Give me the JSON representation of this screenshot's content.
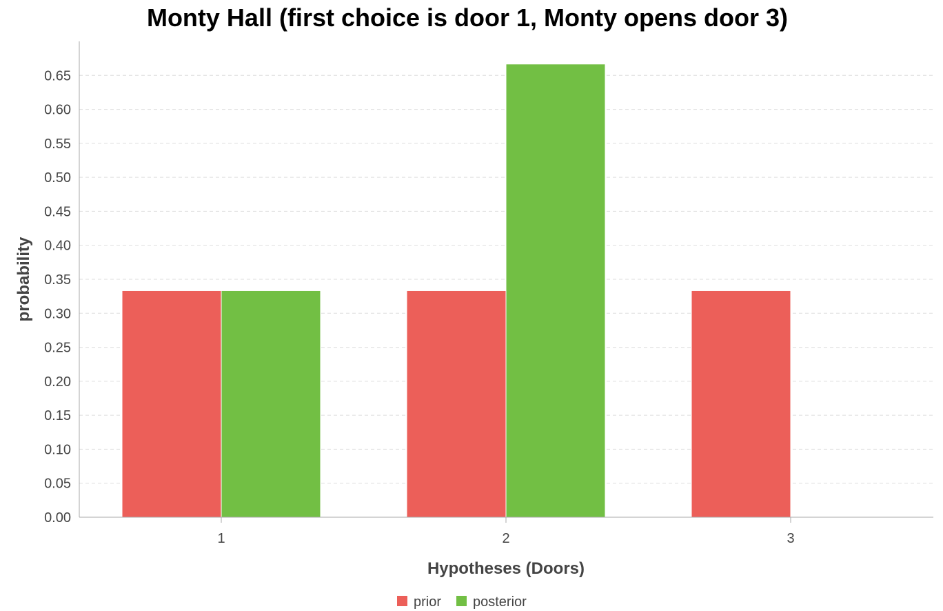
{
  "chart_data": {
    "type": "bar",
    "title": "Monty Hall (first choice is door 1, Monty opens door 3)",
    "xlabel": "Hypotheses (Doors)",
    "ylabel": "probability",
    "categories": [
      "1",
      "2",
      "3"
    ],
    "series": [
      {
        "name": "prior",
        "values": [
          0.3333,
          0.3333,
          0.3333
        ],
        "color": "#ec5f59"
      },
      {
        "name": "posterior",
        "values": [
          0.3333,
          0.6667,
          0
        ],
        "color": "#72bf44"
      }
    ],
    "ylim": [
      0,
      0.7
    ],
    "yticks": [
      "0.00",
      "0.05",
      "0.10",
      "0.15",
      "0.20",
      "0.25",
      "0.30",
      "0.35",
      "0.40",
      "0.45",
      "0.50",
      "0.55",
      "0.60",
      "0.65"
    ],
    "grid": true,
    "legend_position": "bottom-center"
  }
}
